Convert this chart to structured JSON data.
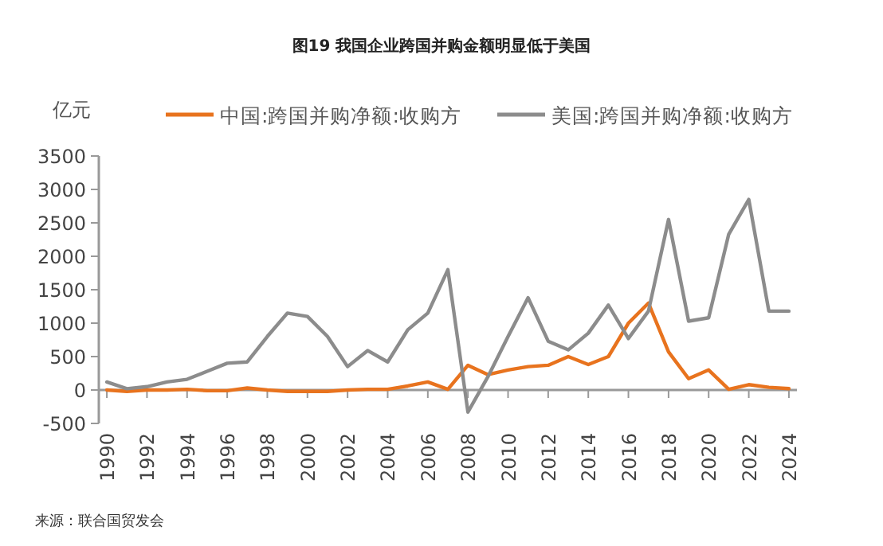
{
  "chart_data": {
    "type": "line",
    "title": "图19 我国企业跨国并购金额明显低于美国",
    "ylabel": "亿元",
    "legend": "top",
    "grid": false,
    "x": [
      1990,
      1991,
      1992,
      1993,
      1994,
      1995,
      1996,
      1997,
      1998,
      1999,
      2000,
      2001,
      2002,
      2003,
      2004,
      2005,
      2006,
      2007,
      2008,
      2009,
      2010,
      2011,
      2012,
      2013,
      2014,
      2015,
      2016,
      2017,
      2018,
      2019,
      2020,
      2021,
      2022,
      2023,
      2024
    ],
    "xlim": [
      1989.6,
      2024.4
    ],
    "xticks": [
      1990,
      1992,
      1994,
      1996,
      1998,
      2000,
      2002,
      2004,
      2006,
      2008,
      2010,
      2012,
      2014,
      2016,
      2018,
      2020,
      2022,
      2024
    ],
    "ylim": [
      -500,
      3500
    ],
    "yticks": [
      -500,
      0,
      500,
      1000,
      1500,
      2000,
      2500,
      3000,
      3500
    ],
    "series": [
      {
        "name": "中国:跨国并购净额:收购方",
        "color": "#e8731e",
        "values": [
          0,
          -20,
          0,
          0,
          10,
          -10,
          -10,
          30,
          0,
          -20,
          -20,
          -20,
          0,
          10,
          10,
          60,
          120,
          10,
          370,
          230,
          300,
          350,
          370,
          500,
          380,
          500,
          1000,
          1300,
          570,
          170,
          300,
          10,
          80,
          40,
          20
        ]
      },
      {
        "name": "美国:跨国并购净额:收购方",
        "color": "#8c8c8c",
        "values": [
          120,
          20,
          50,
          120,
          160,
          280,
          400,
          420,
          800,
          1150,
          1100,
          800,
          350,
          590,
          420,
          900,
          1150,
          1800,
          -330,
          200,
          800,
          1380,
          730,
          600,
          850,
          1270,
          770,
          1180,
          2550,
          1030,
          1080,
          2330,
          2850,
          1180,
          1180
        ]
      }
    ],
    "annotations": [
      "来源：联合国贸发会"
    ]
  }
}
